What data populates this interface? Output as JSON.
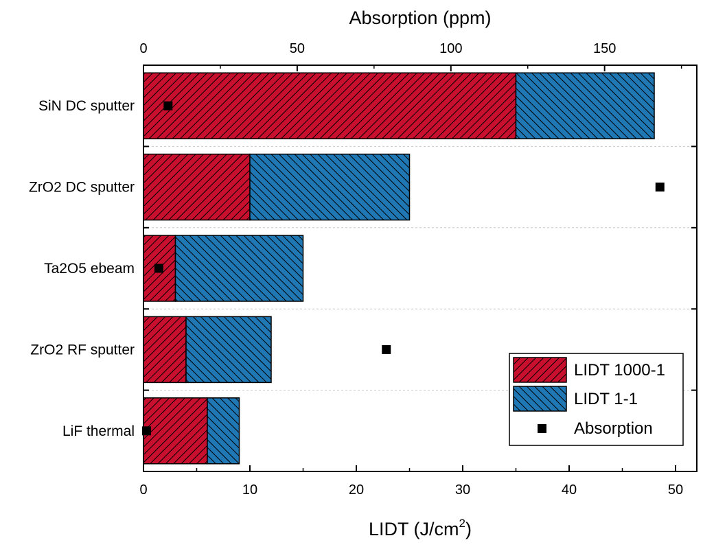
{
  "chart_data": {
    "type": "bar",
    "orientation": "horizontal",
    "stacked": true,
    "categories": [
      "SiN DC sputter",
      "ZrO2 DC sputter",
      "Ta2O5 ebeam",
      "ZrO2 RF sputter",
      "LiF thermal"
    ],
    "series": [
      {
        "name": "LIDT 1000-1",
        "axis": "bottom",
        "color": "#c8102e",
        "hatch": "diagonal-down",
        "values": [
          35,
          10,
          3,
          4,
          6
        ]
      },
      {
        "name": "LIDT 1-1",
        "axis": "bottom",
        "color": "#1f77b4",
        "hatch": "diagonal-up",
        "values": [
          13,
          15,
          12,
          8,
          3
        ]
      },
      {
        "name": "Absorption",
        "axis": "top",
        "type": "scatter",
        "marker": "square",
        "color": "#000000",
        "values": [
          8,
          168,
          5,
          79,
          1
        ]
      }
    ],
    "xlabel_bottom": {
      "text": "LIDT (J/cm",
      "sup": "2",
      "suffix": ")"
    },
    "xlabel_top": "Absorption (ppm)",
    "xlim_bottom": [
      0,
      52
    ],
    "xlim_top": [
      0,
      180
    ],
    "xticks_bottom": [
      "0",
      "10",
      "20",
      "30",
      "40",
      "50"
    ],
    "xticks_top": [
      "0",
      "50",
      "100",
      "150"
    ],
    "legend_position": "bottom-right",
    "grid": "dashed horizontal separators between categories"
  }
}
